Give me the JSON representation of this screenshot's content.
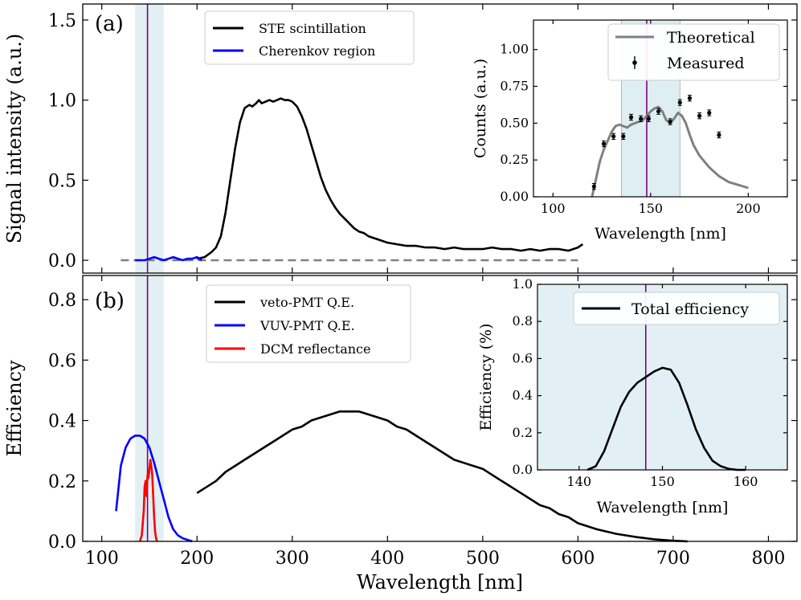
{
  "colors": {
    "black": "#000000",
    "blue": "#0000ff",
    "red": "#ff0000",
    "purple": "#800080",
    "gray": "#808080",
    "shade": "#d6eaf0",
    "inset_shade": "#e2f0f5"
  },
  "chart_data": [
    {
      "id": "a",
      "type": "line",
      "panel_label": "(a)",
      "xlabel": "",
      "ylabel": "Signal intensity (a.u.)",
      "xlim": [
        80,
        830
      ],
      "ylim": [
        -0.08,
        1.6
      ],
      "xticks": [
        100,
        200,
        300,
        400,
        500,
        600,
        700,
        800
      ],
      "yticks": [
        0.0,
        0.5,
        1.0,
        1.5
      ],
      "ytick_labels": [
        "0.0",
        "0.5",
        "1.0",
        "1.5"
      ],
      "shaded_region": [
        135,
        165
      ],
      "vertical_line": 148,
      "baseline": 0.0,
      "legend": [
        "STE scintillation",
        "Cherenkov region"
      ],
      "legend_position": "top-center",
      "series": [
        {
          "name": "STE scintillation",
          "color": "black",
          "x": [
            200,
            208,
            215,
            220,
            225,
            230,
            235,
            240,
            245,
            250,
            255,
            258,
            262,
            265,
            268,
            272,
            276,
            280,
            284,
            288,
            292,
            296,
            300,
            305,
            310,
            315,
            320,
            325,
            330,
            335,
            340,
            345,
            350,
            355,
            360,
            365,
            370,
            375,
            380,
            385,
            390,
            395,
            400,
            410,
            420,
            430,
            440,
            450,
            460,
            470,
            480,
            490,
            500,
            510,
            520,
            530,
            540,
            550,
            560,
            570,
            580,
            590,
            600,
            605
          ],
          "y": [
            0.01,
            0.02,
            0.05,
            0.08,
            0.15,
            0.3,
            0.5,
            0.7,
            0.86,
            0.95,
            0.97,
            0.96,
            0.98,
            1.0,
            0.98,
            0.99,
            1.0,
            0.99,
            1.0,
            1.01,
            1.0,
            1.0,
            0.99,
            0.96,
            0.9,
            0.82,
            0.72,
            0.62,
            0.52,
            0.44,
            0.38,
            0.33,
            0.29,
            0.26,
            0.23,
            0.2,
            0.18,
            0.17,
            0.15,
            0.14,
            0.13,
            0.12,
            0.11,
            0.1,
            0.09,
            0.09,
            0.08,
            0.08,
            0.07,
            0.08,
            0.07,
            0.07,
            0.07,
            0.08,
            0.07,
            0.07,
            0.06,
            0.07,
            0.06,
            0.07,
            0.07,
            0.06,
            0.08,
            0.1
          ]
        },
        {
          "name": "Cherenkov region",
          "color": "blue",
          "x": [
            135,
            140,
            145,
            150,
            155,
            160,
            165,
            170,
            175,
            180,
            185,
            190,
            195,
            200,
            205
          ],
          "y": [
            0.0,
            0.0,
            0.0,
            0.01,
            0.02,
            0.01,
            0.0,
            0.01,
            0.02,
            0.01,
            0.0,
            0.01,
            0.01,
            0.02,
            0.0
          ]
        }
      ],
      "inset": {
        "type": "line",
        "xlabel": "Wavelength [nm]",
        "ylabel": "Counts (a.u.)",
        "xlim": [
          90,
          220
        ],
        "ylim": [
          0,
          1.2
        ],
        "xticks": [
          100,
          150,
          200
        ],
        "yticks": [
          0.0,
          0.25,
          0.5,
          0.75,
          1.0
        ],
        "ytick_labels": [
          "0.00",
          "0.25",
          "0.50",
          "0.75",
          "1.00"
        ],
        "shaded_region": [
          135,
          165
        ],
        "vertical_line": 148,
        "legend": [
          "Theoretical",
          "Measured"
        ],
        "legend_position": "top-right",
        "theoretical": {
          "x": [
            120,
            122,
            124,
            126,
            128,
            130,
            132,
            134,
            136,
            138,
            140,
            142,
            144,
            146,
            148,
            150,
            152,
            154,
            156,
            158,
            160,
            162,
            164,
            166,
            168,
            170,
            172,
            175,
            180,
            185,
            190,
            195,
            200
          ],
          "y": [
            0.0,
            0.12,
            0.24,
            0.32,
            0.38,
            0.44,
            0.48,
            0.49,
            0.48,
            0.47,
            0.49,
            0.5,
            0.51,
            0.52,
            0.55,
            0.58,
            0.6,
            0.61,
            0.58,
            0.52,
            0.5,
            0.53,
            0.57,
            0.55,
            0.5,
            0.42,
            0.35,
            0.28,
            0.2,
            0.14,
            0.1,
            0.08,
            0.06
          ]
        },
        "measured": {
          "x": [
            121,
            126,
            131,
            136,
            140,
            145,
            149,
            154,
            160,
            165,
            170,
            175,
            180,
            185
          ],
          "y": [
            0.07,
            0.36,
            0.41,
            0.41,
            0.54,
            0.53,
            0.53,
            0.58,
            0.51,
            0.64,
            0.67,
            0.55,
            0.57,
            0.42
          ],
          "yerr": [
            0.02,
            0.02,
            0.02,
            0.02,
            0.02,
            0.02,
            0.02,
            0.02,
            0.02,
            0.02,
            0.02,
            0.02,
            0.02,
            0.02
          ]
        }
      }
    },
    {
      "id": "b",
      "type": "line",
      "panel_label": "(b)",
      "xlabel": "Wavelength [nm]",
      "ylabel": "Efficiency",
      "xlim": [
        80,
        830
      ],
      "ylim": [
        0,
        0.88
      ],
      "xticks": [
        100,
        200,
        300,
        400,
        500,
        600,
        700,
        800
      ],
      "xtick_labels": [
        "100",
        "200",
        "300",
        "400",
        "500",
        "600",
        "700",
        "800"
      ],
      "yticks": [
        0.0,
        0.2,
        0.4,
        0.6,
        0.8
      ],
      "ytick_labels": [
        "0.0",
        "0.2",
        "0.4",
        "0.6",
        "0.8"
      ],
      "shaded_region": [
        135,
        165
      ],
      "vertical_line": 148,
      "legend": [
        "veto-PMT Q.E.",
        "VUV-PMT Q.E.",
        "DCM reflectance"
      ],
      "legend_position": "top-center",
      "series": [
        {
          "name": "veto-PMT Q.E.",
          "color": "black",
          "x": [
            200,
            210,
            220,
            230,
            240,
            250,
            260,
            270,
            280,
            290,
            300,
            310,
            320,
            330,
            340,
            350,
            360,
            370,
            380,
            390,
            400,
            410,
            420,
            430,
            440,
            450,
            460,
            470,
            480,
            490,
            500,
            510,
            520,
            530,
            540,
            550,
            560,
            570,
            580,
            590,
            600,
            620,
            640,
            660,
            680,
            700,
            715
          ],
          "y": [
            0.16,
            0.18,
            0.2,
            0.23,
            0.25,
            0.27,
            0.29,
            0.31,
            0.33,
            0.35,
            0.37,
            0.38,
            0.4,
            0.41,
            0.42,
            0.43,
            0.43,
            0.43,
            0.42,
            0.41,
            0.4,
            0.38,
            0.37,
            0.35,
            0.33,
            0.31,
            0.29,
            0.27,
            0.26,
            0.25,
            0.24,
            0.22,
            0.2,
            0.18,
            0.16,
            0.14,
            0.12,
            0.11,
            0.09,
            0.08,
            0.06,
            0.04,
            0.025,
            0.015,
            0.007,
            0.002,
            0.0
          ]
        },
        {
          "name": "VUV-PMT Q.E.",
          "color": "blue",
          "x": [
            115,
            120,
            125,
            130,
            135,
            140,
            145,
            150,
            155,
            160,
            165,
            170,
            175,
            180,
            185,
            190,
            195
          ],
          "y": [
            0.1,
            0.25,
            0.31,
            0.34,
            0.35,
            0.35,
            0.34,
            0.31,
            0.26,
            0.2,
            0.14,
            0.08,
            0.04,
            0.02,
            0.01,
            0.005,
            0.0
          ],
          "note": "VUV-PMT curve rendered with smoothing"
        },
        {
          "name": "DCM reflectance",
          "color": "red",
          "x": [
            140,
            142,
            144,
            145,
            146,
            147,
            148,
            149,
            150,
            151,
            152,
            153,
            154,
            155,
            156,
            157,
            158
          ],
          "y": [
            0.0,
            0.02,
            0.1,
            0.18,
            0.2,
            0.15,
            0.22,
            0.21,
            0.24,
            0.27,
            0.25,
            0.22,
            0.15,
            0.08,
            0.03,
            0.01,
            0.0
          ]
        }
      ],
      "inset": {
        "type": "line",
        "xlabel": "Wavelength [nm]",
        "ylabel": "Efficiency (%)",
        "xlim": [
          135,
          165
        ],
        "ylim": [
          0,
          1.0
        ],
        "xticks": [
          140,
          150,
          160
        ],
        "yticks": [
          0.0,
          0.2,
          0.4,
          0.6,
          0.8,
          1.0
        ],
        "ytick_labels": [
          "0.0",
          "0.2",
          "0.4",
          "0.6",
          "0.8",
          "1.0"
        ],
        "vertical_line": 148,
        "legend": [
          "Total efficiency"
        ],
        "legend_position": "top-right",
        "series": [
          {
            "name": "Total efficiency",
            "x": [
              141,
              142,
              143,
              144,
              145,
              146,
              147,
              148,
              149,
              150,
              151,
              152,
              153,
              154,
              155,
              156,
              157,
              158,
              159,
              160
            ],
            "y": [
              0.0,
              0.02,
              0.1,
              0.22,
              0.34,
              0.42,
              0.47,
              0.5,
              0.53,
              0.55,
              0.54,
              0.47,
              0.35,
              0.22,
              0.12,
              0.05,
              0.02,
              0.005,
              0.0,
              0.0
            ]
          }
        ]
      }
    }
  ]
}
